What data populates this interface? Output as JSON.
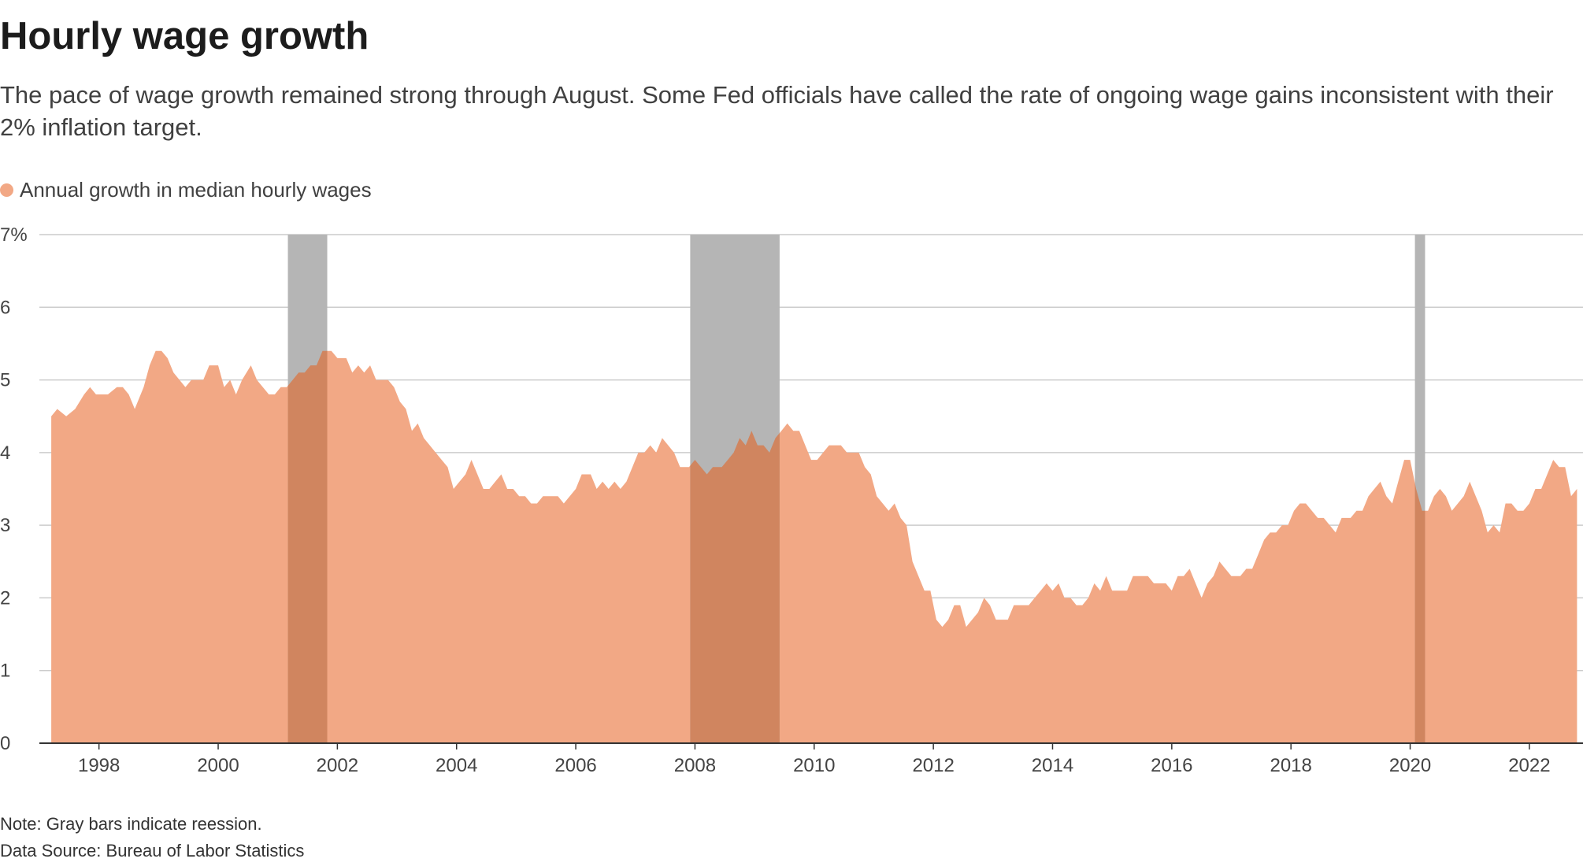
{
  "title": "Hourly wage growth",
  "subtitle": "The pace of wage growth remained strong through August. Some Fed officials have called the rate of ongoing wage gains inconsistent with their 2% inflation target.",
  "legend": {
    "label": "Annual growth in median hourly wages",
    "color": "#f2a885"
  },
  "note": "Note: Gray bars indicate reession.",
  "source": "Data Source: Bureau of Labor Statistics",
  "colors": {
    "area": "#f2a885",
    "recession": "#b5b5b5",
    "overlap": "#d0855f",
    "grid": "#cccccc",
    "axis": "#333333"
  },
  "chart_data": {
    "type": "area",
    "title": "Hourly wage growth",
    "series_name": "Annual growth in median hourly wages",
    "xlim": [
      1997.0,
      2022.9
    ],
    "ylim": [
      0,
      7
    ],
    "y_ticks": [
      0,
      1,
      2,
      3,
      4,
      5,
      6,
      7
    ],
    "y_tick_labels": [
      "0",
      "1",
      "2",
      "3",
      "4",
      "5",
      "6",
      "7%"
    ],
    "x_ticks": [
      1998,
      2000,
      2002,
      2004,
      2006,
      2008,
      2010,
      2012,
      2014,
      2016,
      2018,
      2020,
      2022
    ],
    "x_tick_labels": [
      "1998",
      "2000",
      "2002",
      "2004",
      "2006",
      "2008",
      "2010",
      "2012",
      "2014",
      "2016",
      "2018",
      "2020",
      "2022"
    ],
    "recessions": [
      [
        2001.17,
        2001.83
      ],
      [
        2007.92,
        2009.42
      ],
      [
        2020.08,
        2020.25
      ]
    ],
    "points": [
      [
        1997.2,
        4.5
      ],
      [
        1997.3,
        4.6
      ],
      [
        1997.45,
        4.5
      ],
      [
        1997.6,
        4.6
      ],
      [
        1997.75,
        4.8
      ],
      [
        1997.85,
        4.9
      ],
      [
        1997.95,
        4.8
      ],
      [
        1998.15,
        4.8
      ],
      [
        1998.3,
        4.9
      ],
      [
        1998.4,
        4.9
      ],
      [
        1998.5,
        4.8
      ],
      [
        1998.6,
        4.6
      ],
      [
        1998.75,
        4.9
      ],
      [
        1998.85,
        5.2
      ],
      [
        1998.95,
        5.4
      ],
      [
        1999.05,
        5.4
      ],
      [
        1999.15,
        5.3
      ],
      [
        1999.25,
        5.1
      ],
      [
        1999.45,
        4.9
      ],
      [
        1999.55,
        5.0
      ],
      [
        1999.75,
        5.0
      ],
      [
        1999.85,
        5.2
      ],
      [
        2000.0,
        5.2
      ],
      [
        2000.1,
        4.9
      ],
      [
        2000.2,
        5.0
      ],
      [
        2000.3,
        4.8
      ],
      [
        2000.4,
        5.0
      ],
      [
        2000.55,
        5.2
      ],
      [
        2000.65,
        5.0
      ],
      [
        2000.85,
        4.8
      ],
      [
        2000.95,
        4.8
      ],
      [
        2001.05,
        4.9
      ],
      [
        2001.15,
        4.9
      ],
      [
        2001.25,
        5.0
      ],
      [
        2001.35,
        5.1
      ],
      [
        2001.45,
        5.1
      ],
      [
        2001.55,
        5.2
      ],
      [
        2001.65,
        5.2
      ],
      [
        2001.75,
        5.4
      ],
      [
        2001.9,
        5.4
      ],
      [
        2002.0,
        5.3
      ],
      [
        2002.15,
        5.3
      ],
      [
        2002.25,
        5.1
      ],
      [
        2002.35,
        5.2
      ],
      [
        2002.45,
        5.1
      ],
      [
        2002.55,
        5.2
      ],
      [
        2002.65,
        5.0
      ],
      [
        2002.85,
        5.0
      ],
      [
        2002.95,
        4.9
      ],
      [
        2003.05,
        4.7
      ],
      [
        2003.15,
        4.6
      ],
      [
        2003.25,
        4.3
      ],
      [
        2003.35,
        4.4
      ],
      [
        2003.45,
        4.2
      ],
      [
        2003.55,
        4.1
      ],
      [
        2003.65,
        4.0
      ],
      [
        2003.75,
        3.9
      ],
      [
        2003.85,
        3.8
      ],
      [
        2003.95,
        3.5
      ],
      [
        2004.05,
        3.6
      ],
      [
        2004.15,
        3.7
      ],
      [
        2004.25,
        3.9
      ],
      [
        2004.35,
        3.7
      ],
      [
        2004.45,
        3.5
      ],
      [
        2004.55,
        3.5
      ],
      [
        2004.65,
        3.6
      ],
      [
        2004.75,
        3.7
      ],
      [
        2004.85,
        3.5
      ],
      [
        2004.95,
        3.5
      ],
      [
        2005.05,
        3.4
      ],
      [
        2005.15,
        3.4
      ],
      [
        2005.25,
        3.3
      ],
      [
        2005.35,
        3.3
      ],
      [
        2005.45,
        3.4
      ],
      [
        2005.55,
        3.4
      ],
      [
        2005.7,
        3.4
      ],
      [
        2005.8,
        3.3
      ],
      [
        2005.9,
        3.4
      ],
      [
        2006.0,
        3.5
      ],
      [
        2006.1,
        3.7
      ],
      [
        2006.25,
        3.7
      ],
      [
        2006.35,
        3.5
      ],
      [
        2006.45,
        3.6
      ],
      [
        2006.55,
        3.5
      ],
      [
        2006.65,
        3.6
      ],
      [
        2006.75,
        3.5
      ],
      [
        2006.85,
        3.6
      ],
      [
        2006.95,
        3.8
      ],
      [
        2007.05,
        4.0
      ],
      [
        2007.15,
        4.0
      ],
      [
        2007.25,
        4.1
      ],
      [
        2007.35,
        4.0
      ],
      [
        2007.45,
        4.2
      ],
      [
        2007.55,
        4.1
      ],
      [
        2007.65,
        4.0
      ],
      [
        2007.75,
        3.8
      ],
      [
        2007.9,
        3.8
      ],
      [
        2008.0,
        3.9
      ],
      [
        2008.1,
        3.8
      ],
      [
        2008.2,
        3.7
      ],
      [
        2008.3,
        3.8
      ],
      [
        2008.45,
        3.8
      ],
      [
        2008.55,
        3.9
      ],
      [
        2008.65,
        4.0
      ],
      [
        2008.75,
        4.2
      ],
      [
        2008.85,
        4.1
      ],
      [
        2008.95,
        4.3
      ],
      [
        2009.05,
        4.1
      ],
      [
        2009.15,
        4.1
      ],
      [
        2009.25,
        4.0
      ],
      [
        2009.35,
        4.2
      ],
      [
        2009.45,
        4.3
      ],
      [
        2009.55,
        4.4
      ],
      [
        2009.65,
        4.3
      ],
      [
        2009.75,
        4.3
      ],
      [
        2009.85,
        4.1
      ],
      [
        2009.95,
        3.9
      ],
      [
        2010.05,
        3.9
      ],
      [
        2010.15,
        4.0
      ],
      [
        2010.25,
        4.1
      ],
      [
        2010.45,
        4.1
      ],
      [
        2010.55,
        4.0
      ],
      [
        2010.75,
        4.0
      ],
      [
        2010.85,
        3.8
      ],
      [
        2010.95,
        3.7
      ],
      [
        2011.05,
        3.4
      ],
      [
        2011.15,
        3.3
      ],
      [
        2011.25,
        3.2
      ],
      [
        2011.35,
        3.3
      ],
      [
        2011.45,
        3.1
      ],
      [
        2011.55,
        3.0
      ],
      [
        2011.65,
        2.5
      ],
      [
        2011.75,
        2.3
      ],
      [
        2011.85,
        2.1
      ],
      [
        2011.95,
        2.1
      ],
      [
        2012.05,
        1.7
      ],
      [
        2012.15,
        1.6
      ],
      [
        2012.25,
        1.7
      ],
      [
        2012.35,
        1.9
      ],
      [
        2012.45,
        1.9
      ],
      [
        2012.55,
        1.6
      ],
      [
        2012.65,
        1.7
      ],
      [
        2012.75,
        1.8
      ],
      [
        2012.85,
        2.0
      ],
      [
        2012.95,
        1.9
      ],
      [
        2013.05,
        1.7
      ],
      [
        2013.25,
        1.7
      ],
      [
        2013.35,
        1.9
      ],
      [
        2013.6,
        1.9
      ],
      [
        2013.7,
        2.0
      ],
      [
        2013.8,
        2.1
      ],
      [
        2013.9,
        2.2
      ],
      [
        2014.0,
        2.1
      ],
      [
        2014.1,
        2.2
      ],
      [
        2014.2,
        2.0
      ],
      [
        2014.3,
        2.0
      ],
      [
        2014.4,
        1.9
      ],
      [
        2014.5,
        1.9
      ],
      [
        2014.6,
        2.0
      ],
      [
        2014.7,
        2.2
      ],
      [
        2014.8,
        2.1
      ],
      [
        2014.9,
        2.3
      ],
      [
        2015.0,
        2.1
      ],
      [
        2015.25,
        2.1
      ],
      [
        2015.35,
        2.3
      ],
      [
        2015.6,
        2.3
      ],
      [
        2015.7,
        2.2
      ],
      [
        2015.9,
        2.2
      ],
      [
        2016.0,
        2.1
      ],
      [
        2016.1,
        2.3
      ],
      [
        2016.2,
        2.3
      ],
      [
        2016.3,
        2.4
      ],
      [
        2016.4,
        2.2
      ],
      [
        2016.5,
        2.0
      ],
      [
        2016.6,
        2.2
      ],
      [
        2016.7,
        2.3
      ],
      [
        2016.8,
        2.5
      ],
      [
        2016.9,
        2.4
      ],
      [
        2017.0,
        2.3
      ],
      [
        2017.15,
        2.3
      ],
      [
        2017.25,
        2.4
      ],
      [
        2017.35,
        2.4
      ],
      [
        2017.45,
        2.6
      ],
      [
        2017.55,
        2.8
      ],
      [
        2017.65,
        2.9
      ],
      [
        2017.75,
        2.9
      ],
      [
        2017.85,
        3.0
      ],
      [
        2017.95,
        3.0
      ],
      [
        2018.05,
        3.2
      ],
      [
        2018.15,
        3.3
      ],
      [
        2018.25,
        3.3
      ],
      [
        2018.35,
        3.2
      ],
      [
        2018.45,
        3.1
      ],
      [
        2018.55,
        3.1
      ],
      [
        2018.65,
        3.0
      ],
      [
        2018.75,
        2.9
      ],
      [
        2018.85,
        3.1
      ],
      [
        2019.0,
        3.1
      ],
      [
        2019.1,
        3.2
      ],
      [
        2019.2,
        3.2
      ],
      [
        2019.3,
        3.4
      ],
      [
        2019.4,
        3.5
      ],
      [
        2019.5,
        3.6
      ],
      [
        2019.6,
        3.4
      ],
      [
        2019.7,
        3.3
      ],
      [
        2019.8,
        3.6
      ],
      [
        2019.9,
        3.9
      ],
      [
        2020.0,
        3.9
      ],
      [
        2020.1,
        3.5
      ],
      [
        2020.2,
        3.2
      ],
      [
        2020.3,
        3.2
      ],
      [
        2020.4,
        3.4
      ],
      [
        2020.5,
        3.5
      ],
      [
        2020.6,
        3.4
      ],
      [
        2020.7,
        3.2
      ],
      [
        2020.8,
        3.3
      ],
      [
        2020.9,
        3.4
      ],
      [
        2021.0,
        3.6
      ],
      [
        2021.1,
        3.4
      ],
      [
        2021.2,
        3.2
      ],
      [
        2021.3,
        2.9
      ],
      [
        2021.4,
        3.0
      ],
      [
        2021.5,
        2.9
      ],
      [
        2021.6,
        3.3
      ],
      [
        2021.7,
        3.3
      ],
      [
        2021.8,
        3.2
      ],
      [
        2021.9,
        3.2
      ],
      [
        2022.0,
        3.3
      ],
      [
        2022.1,
        3.5
      ],
      [
        2022.2,
        3.5
      ],
      [
        2022.3,
        3.7
      ],
      [
        2022.4,
        3.9
      ],
      [
        2022.5,
        3.8
      ],
      [
        2022.6,
        3.8
      ],
      [
        2022.7,
        3.4
      ],
      [
        2022.8,
        3.5
      ]
    ]
  }
}
